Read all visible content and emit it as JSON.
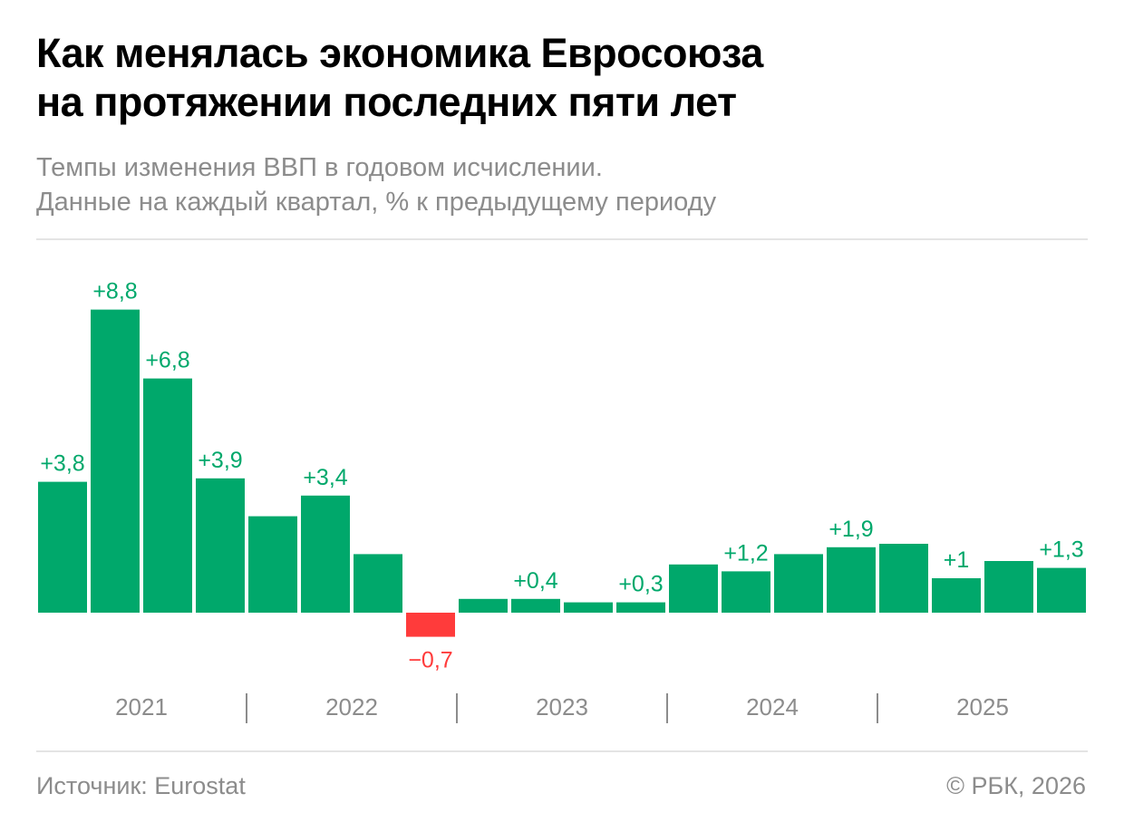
{
  "title": {
    "line1": "Как менялась экономика Евросоюза",
    "line2": "на протяжении последних пяти лет"
  },
  "subtitle": {
    "line1": "Темпы изменения ВВП в годовом исчислении.",
    "line2": "Данные на каждый квартал, % к предыдущему периоду"
  },
  "footer": {
    "source": "Источник: Eurostat",
    "copyright": "© РБК, 2026"
  },
  "colors": {
    "positive": "#00a86b",
    "negative": "#ff3b3b",
    "axis_text": "#8c8c8c",
    "separator": "#8c8c8c"
  },
  "chart_data": {
    "type": "bar",
    "title": "Как менялась экономика Евросоюза на протяжении последних пяти лет",
    "xlabel": "",
    "ylabel": "% к предыдущему периоду",
    "grid": false,
    "categories": [
      "2021 Q1",
      "2021 Q2",
      "2021 Q3",
      "2021 Q4",
      "2022 Q1",
      "2022 Q2",
      "2022 Q3",
      "2022 Q4",
      "2023 Q1",
      "2023 Q2",
      "2023 Q3",
      "2023 Q4",
      "2024 Q1",
      "2024 Q2",
      "2024 Q3",
      "2024 Q4",
      "2025 Q1",
      "2025 Q2",
      "2025 Q3",
      "2025 Q4"
    ],
    "values": [
      3.8,
      8.8,
      6.8,
      3.9,
      2.8,
      3.4,
      1.7,
      -0.7,
      0.4,
      0.4,
      0.3,
      0.3,
      1.4,
      1.2,
      1.7,
      1.9,
      2.0,
      1.0,
      1.5,
      1.3
    ],
    "labels": [
      "+3,8",
      "+8,8",
      "+6,8",
      "+3,9",
      "",
      "+3,4",
      "",
      "−0,7",
      "",
      "+0,4",
      "",
      "+0,3",
      "",
      "+1,2",
      "",
      "+1,9",
      "",
      "+1",
      "",
      "+1,3"
    ],
    "year_labels": [
      "2021",
      "2022",
      "2023",
      "2024",
      "2025"
    ],
    "ylim": [
      -0.7,
      8.8
    ]
  }
}
